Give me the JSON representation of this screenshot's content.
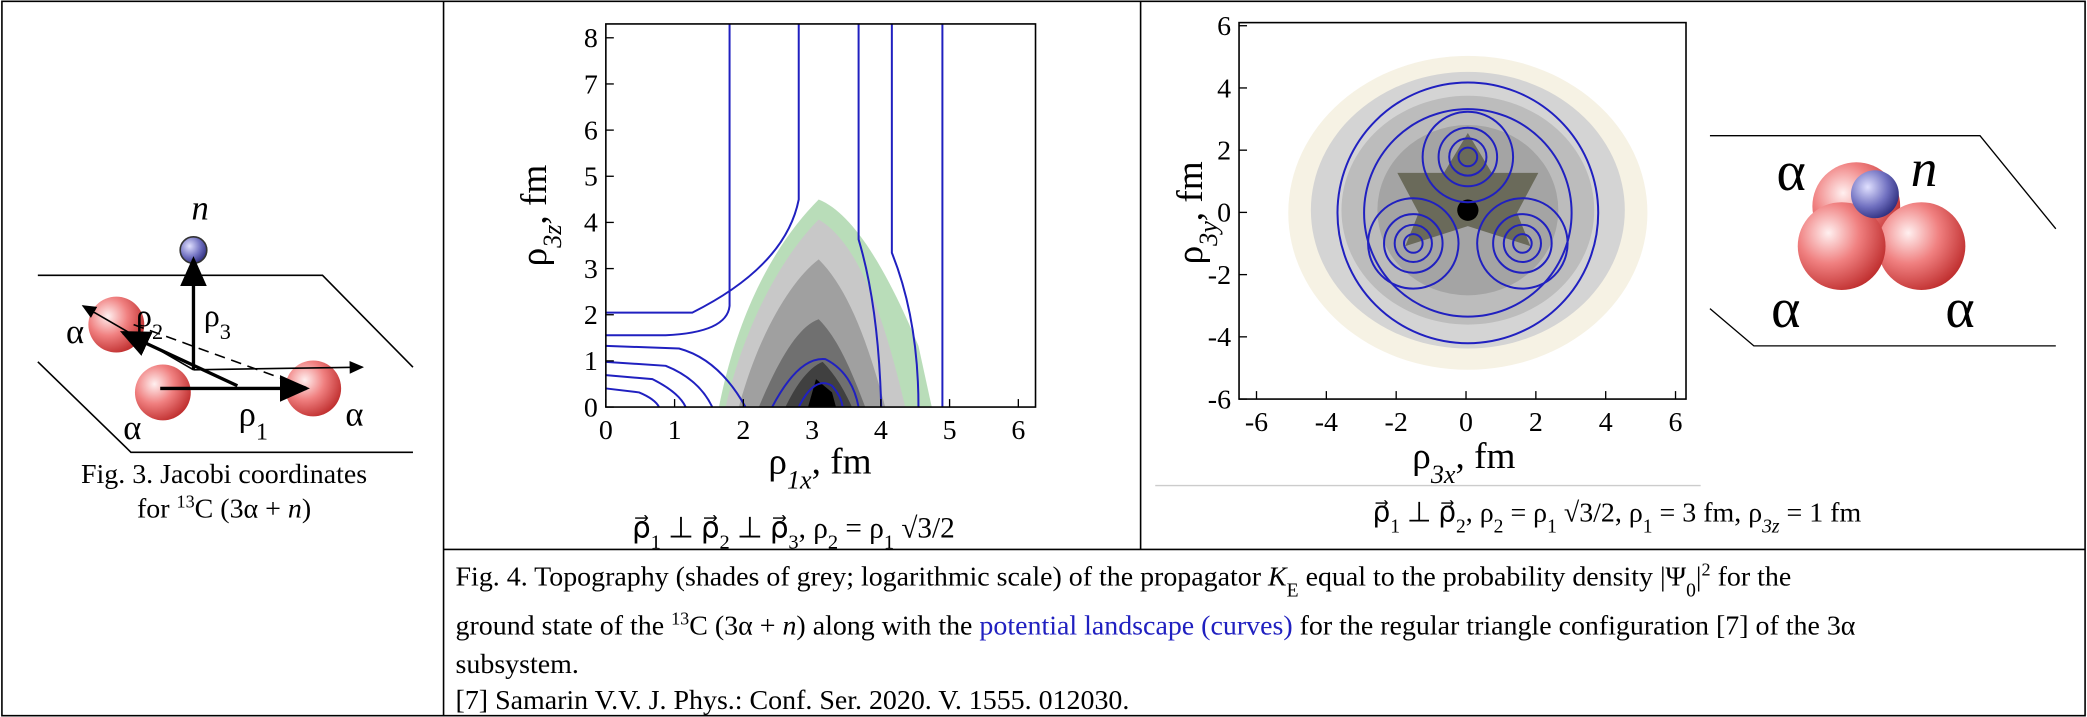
{
  "fig3": {
    "labels": [
      [
        {
          "text": "n",
          "style": "italic"
        }
      ],
      [
        {
          "text": "ρ"
        },
        {
          "text": "3",
          "style": "sub"
        }
      ],
      [
        {
          "text": "ρ"
        },
        {
          "text": "2",
          "style": "sub"
        }
      ],
      [
        {
          "text": "α"
        }
      ],
      [
        {
          "text": "α"
        }
      ],
      [
        {
          "text": "ρ"
        },
        {
          "text": "1",
          "style": "sub"
        }
      ],
      [
        {
          "text": "α"
        }
      ]
    ],
    "caption": [
      [
        {
          "text": "Fig. 3. Jacobi coordinates"
        }
      ],
      [
        {
          "text": "for "
        },
        {
          "text": "13",
          "style": "sup"
        },
        {
          "text": "C (3α + "
        },
        {
          "text": "n",
          "style": "italic"
        },
        {
          "text": ")"
        }
      ]
    ]
  },
  "plots": [
    {
      "xlim": [
        0,
        6.25
      ],
      "ylim": [
        0,
        8.3
      ],
      "xticks": [
        0,
        1,
        2,
        3,
        4,
        5,
        6
      ],
      "yticks": [
        0,
        1,
        2,
        3,
        4,
        5,
        6,
        7,
        8
      ],
      "xlabel": [
        {
          "text": "ρ"
        },
        {
          "text": "1x",
          "style": "sub-italic"
        },
        {
          "text": ", fm"
        }
      ],
      "ylabel": [
        {
          "text": "ρ"
        },
        {
          "text": "3z",
          "style": "sub-italic"
        },
        {
          "text": ", fm"
        }
      ],
      "caption": [
        {
          "text": "ρ⃗"
        },
        {
          "text": "1",
          "style": "sub"
        },
        {
          "text": " ⊥ ρ⃗"
        },
        {
          "text": "2",
          "style": "sub"
        },
        {
          "text": " ⊥ ρ⃗"
        },
        {
          "text": "3",
          "style": "sub"
        },
        {
          "text": ",  ρ"
        },
        {
          "text": "2",
          "style": "sub"
        },
        {
          "text": " = ρ"
        },
        {
          "text": "1",
          "style": "sub"
        },
        {
          "text": " √3/2"
        }
      ]
    },
    {
      "xlim": [
        -6.5,
        6.3
      ],
      "ylim": [
        -6,
        6.1
      ],
      "xticks": [
        -6,
        -4,
        -2,
        0,
        2,
        4,
        6
      ],
      "yticks": [
        -6,
        -4,
        -2,
        0,
        2,
        4,
        6
      ],
      "xlabel": [
        {
          "text": "ρ"
        },
        {
          "text": "3x",
          "style": "sub-italic"
        },
        {
          "text": ", fm"
        }
      ],
      "ylabel": [
        {
          "text": "ρ"
        },
        {
          "text": "3y",
          "style": "sub-italic"
        },
        {
          "text": ", fm"
        }
      ],
      "caption": [
        {
          "text": "ρ⃗"
        },
        {
          "text": "1",
          "style": "sub"
        },
        {
          "text": " ⊥ ρ⃗"
        },
        {
          "text": "2",
          "style": "sub"
        },
        {
          "text": ",  ρ"
        },
        {
          "text": "2",
          "style": "sub"
        },
        {
          "text": " = ρ"
        },
        {
          "text": "1",
          "style": "sub"
        },
        {
          "text": " √3/2,  ρ"
        },
        {
          "text": "1",
          "style": "sub"
        },
        {
          "text": " = 3 fm,  ρ"
        },
        {
          "text": "3z",
          "style": "sub-italic"
        },
        {
          "text": " = 1 fm"
        }
      ]
    }
  ],
  "cluster": {
    "labels": [
      [
        {
          "text": "α"
        }
      ],
      [
        {
          "text": "n",
          "style": "italic"
        }
      ],
      [
        {
          "text": "α"
        }
      ],
      [
        {
          "text": "α"
        }
      ]
    ]
  },
  "fig4": {
    "lines": [
      [
        {
          "text": "Fig. 4. Topography (shades of grey; logarithmic scale) of the propagator  "
        },
        {
          "text": "K",
          "style": "italic"
        },
        {
          "text": "E",
          "style": "sub"
        },
        {
          "text": " equal to  the probability density |Ψ"
        },
        {
          "text": "0",
          "style": "sub"
        },
        {
          "text": "|"
        },
        {
          "text": "2",
          "style": "sup"
        },
        {
          "text": "  for the"
        }
      ],
      [
        {
          "text": "ground state of the "
        },
        {
          "text": "13",
          "style": "sup"
        },
        {
          "text": "C (3α + "
        },
        {
          "text": "n",
          "style": "italic"
        },
        {
          "text": ") along with the "
        },
        {
          "text": "potential landscape (curves)",
          "style": "link"
        },
        {
          "text": " for the regular triangle configuration [7] of the 3α"
        }
      ],
      [
        {
          "text": "subsystem."
        }
      ],
      [
        {
          "text": "[7] Samarin V.V.  J. Phys.: Conf. Ser.  2020. V. 1555. 012030."
        }
      ]
    ]
  }
}
